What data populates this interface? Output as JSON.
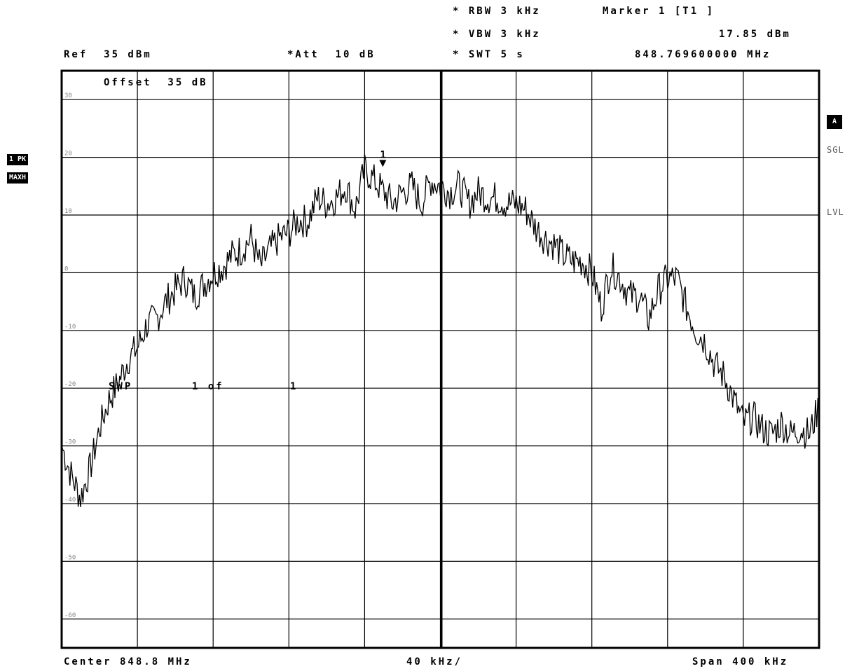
{
  "header": {
    "rbw": "* RBW 3 kHz",
    "vbw": "* VBW 3 kHz",
    "swt": "* SWT 5 s",
    "marker_title": "Marker 1 [T1 ]",
    "marker_level": "17.85 dBm",
    "marker_freq": "848.769600000 MHz",
    "ref": "Ref  35 dBm",
    "att": "*Att  10 dB"
  },
  "overlay": {
    "offset": "Offset  35 dB",
    "sweep": "SWP",
    "sweep_count": "1 of",
    "sweep_total": "1",
    "marker_label": "1"
  },
  "side_left": {
    "trace_badge": "1 PK",
    "mode_badge": "MAXH"
  },
  "side_right": {
    "a_badge": "A",
    "sgl": "SGL",
    "lvl": "LVL"
  },
  "footer": {
    "center": "Center 848.8 MHz",
    "div": "40 kHz/",
    "span": "Span 400 kHz"
  },
  "chart_data": {
    "type": "line",
    "title": "",
    "xlabel": "",
    "ylabel": "",
    "x_unit": "MHz",
    "y_unit": "dBm",
    "xlim": [
      848.6,
      849.0
    ],
    "ylim": [
      -65,
      35
    ],
    "yticks": [
      30,
      20,
      10,
      0,
      -10,
      -20,
      -30,
      -40,
      -50,
      -60
    ],
    "ytick_labels": [
      "30",
      "20",
      "10",
      "0",
      "-10",
      "-20",
      "-30",
      "-40",
      "-50",
      "-60"
    ],
    "grid": true,
    "marker": {
      "x": 848.7696,
      "y": 17.85,
      "label": "1"
    },
    "series": [
      {
        "x": [
          848.6,
          848.605,
          848.61,
          848.615,
          848.62,
          848.625,
          848.63,
          848.635,
          848.64,
          848.645,
          848.65,
          848.655,
          848.66,
          848.665,
          848.67,
          848.675,
          848.68,
          848.685,
          848.69,
          848.695,
          848.7,
          848.705,
          848.71,
          848.715,
          848.72,
          848.725,
          848.73,
          848.735,
          848.74,
          848.745,
          848.75,
          848.755,
          848.76,
          848.765,
          848.77,
          848.775,
          848.78,
          848.785,
          848.79,
          848.795,
          848.8,
          848.805,
          848.81,
          848.815,
          848.82,
          848.825,
          848.83,
          848.835,
          848.84,
          848.845,
          848.85,
          848.855,
          848.86,
          848.865,
          848.87,
          848.875,
          848.88,
          848.885,
          848.89,
          848.895,
          848.9,
          848.905,
          848.91,
          848.915,
          848.92,
          848.925,
          848.93,
          848.935,
          848.94,
          848.945,
          848.95,
          848.955,
          848.96,
          848.965,
          848.97,
          848.975,
          848.98,
          848.985,
          848.99,
          848.995,
          849.0
        ],
        "y": [
          -30,
          -35,
          -39,
          -34,
          -27,
          -22,
          -19,
          -15,
          -13,
          -9,
          -8,
          -5,
          -3,
          -1,
          -4,
          -2,
          0,
          1,
          3,
          4,
          6,
          1,
          4,
          6,
          7,
          9,
          9,
          13,
          12,
          13,
          15,
          11,
          17.85,
          16,
          14,
          12,
          14,
          15,
          12,
          16,
          15,
          14,
          15,
          12,
          14,
          13,
          13,
          12,
          12,
          11,
          8,
          6,
          5,
          3,
          2,
          2,
          0,
          -6,
          1,
          -1,
          -4,
          -4,
          -8,
          -3,
          -1,
          -1,
          -6,
          -10,
          -12,
          -16,
          -18,
          -22,
          -26,
          -25,
          -27,
          -28,
          -26,
          -28,
          -27,
          -28,
          -23
        ]
      }
    ]
  }
}
